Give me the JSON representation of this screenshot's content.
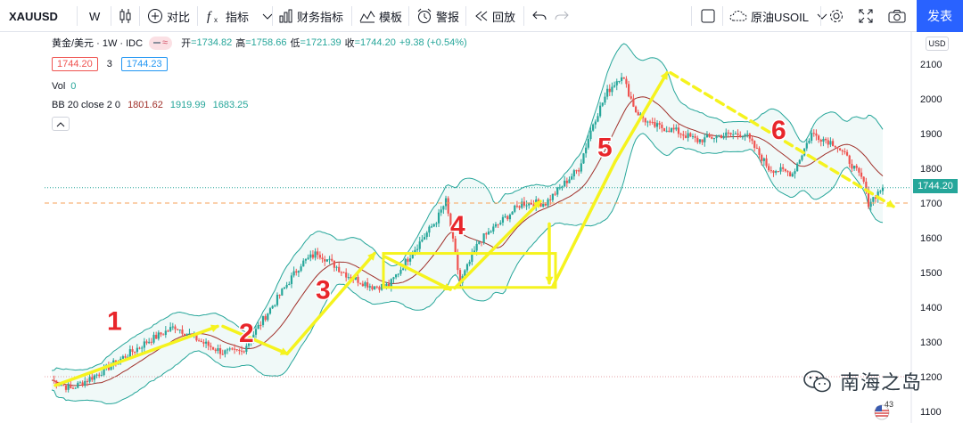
{
  "toolbar": {
    "symbol": "XAUUSD",
    "interval": "W",
    "compare_label": "对比",
    "indicators_label": "指标",
    "financials_label": "财务指标",
    "templates_label": "模板",
    "alert_label": "警报",
    "replay_label": "回放",
    "compare_symbol": "原油USOIL",
    "publish_label": "发表"
  },
  "legend": {
    "title": "黄金/美元 · 1W · IDC",
    "open_label": "开",
    "open": "=1734.82",
    "high_label": "高",
    "high": "=1758.66",
    "low_label": "低",
    "low": "=1721.39",
    "close_label": "收",
    "close": "=1744.20",
    "change": "+9.38 (+0.54%)",
    "bid": "1744.20",
    "spread": "3",
    "ask": "1744.23",
    "vol_label": "Vol",
    "vol_value": "0",
    "bb_label": "BB 20 close 2 0",
    "bb_basis": "1801.62",
    "bb_upper": "1919.99",
    "bb_lower": "1683.25"
  },
  "price_axis": {
    "currency": "USD",
    "current_price": "1744.20"
  },
  "chart_data": {
    "type": "candlestick",
    "symbol": "XAUUSD",
    "timeframe": "1W",
    "ylim": [
      1080,
      2130
    ],
    "yticks": [
      1100,
      1200,
      1300,
      1400,
      1500,
      1600,
      1700,
      1800,
      1900,
      2000,
      2100
    ],
    "horizontal_line": 1700,
    "current_price": 1744.2,
    "waves": [
      {
        "label": "1",
        "from": 1175,
        "to": 1345
      },
      {
        "label": "2",
        "from": 1345,
        "to": 1266
      },
      {
        "label": "3",
        "from": 1266,
        "to": 1555
      },
      {
        "label": "4",
        "from": 1555,
        "to": 1451
      },
      {
        "label": "5",
        "from": 1451,
        "to": 2075
      },
      {
        "label": "6",
        "from": 2075,
        "to": 1690
      }
    ]
  },
  "watermark": {
    "text": "南海之岛"
  },
  "badge": {
    "text": "43"
  },
  "colors": {
    "up": "#26a69a",
    "down": "#ef5350",
    "band": "#26a69a",
    "basis": "#a0302a",
    "arrow": "#f5f31e",
    "wave_label": "#e8262b",
    "accent": "#2962ff"
  }
}
